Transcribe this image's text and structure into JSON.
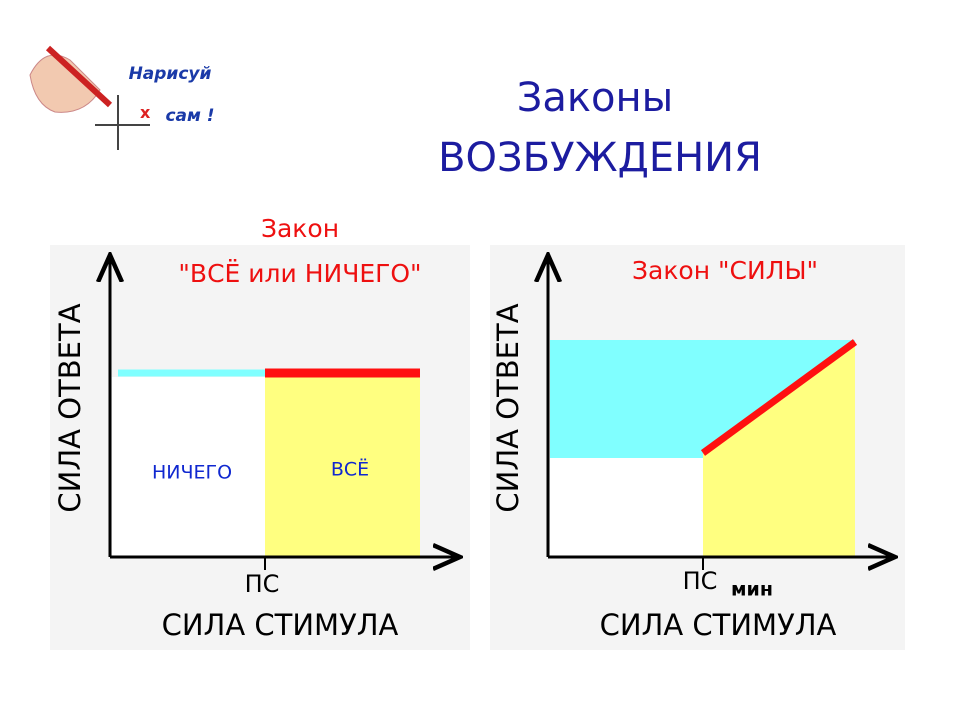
{
  "logo": {
    "line1": "Нарисуй",
    "line2": "сам !"
  },
  "title": {
    "line1": "Законы",
    "line2": "ВОЗБУЖДЕНИЯ"
  },
  "left_panel": {
    "title_line1": "Закон",
    "title_line2": "\"ВСЁ или НИЧЕГО\"",
    "y_label": "СИЛА ОТВЕТА",
    "region_nothing": "НИЧЕГО",
    "region_all": "ВСЁ",
    "threshold": "ПС",
    "x_label": "СИЛА СТИМУЛА"
  },
  "right_panel": {
    "title": "Закон \"СИЛЫ\"",
    "y_label": "СИЛА ОТВЕТА",
    "threshold": "ПС",
    "threshold_sub": "мин",
    "x_label": "СИЛА СТИМУЛА"
  }
}
